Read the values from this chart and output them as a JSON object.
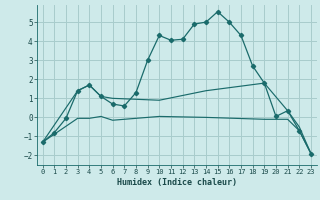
{
  "xlabel": "Humidex (Indice chaleur)",
  "bg_color": "#ceeaea",
  "grid_color": "#a8cccc",
  "line_color": "#1a6b6b",
  "xlim": [
    -0.5,
    23.5
  ],
  "ylim": [
    -2.5,
    5.9
  ],
  "yticks": [
    -2,
    -1,
    0,
    1,
    2,
    3,
    4,
    5
  ],
  "xticks": [
    0,
    1,
    2,
    3,
    4,
    5,
    6,
    7,
    8,
    9,
    10,
    11,
    12,
    13,
    14,
    15,
    16,
    17,
    18,
    19,
    20,
    21,
    22,
    23
  ],
  "line1_x": [
    0,
    1,
    2,
    3,
    4,
    5,
    6,
    7,
    8,
    9,
    10,
    11,
    12,
    13,
    14,
    15,
    16,
    17,
    18,
    19,
    20,
    21,
    22,
    23
  ],
  "line1_y": [
    -1.3,
    -0.8,
    -0.05,
    1.4,
    1.7,
    1.1,
    0.7,
    0.6,
    1.3,
    3.0,
    4.3,
    4.05,
    4.1,
    4.9,
    5.0,
    5.55,
    5.0,
    4.3,
    2.7,
    1.8,
    0.05,
    0.35,
    -0.7,
    -1.9
  ],
  "line2_x": [
    0,
    3,
    4,
    5,
    6,
    10,
    14,
    19,
    21,
    22,
    23
  ],
  "line2_y": [
    -1.3,
    1.4,
    1.7,
    1.1,
    1.0,
    0.9,
    1.4,
    1.8,
    0.35,
    -0.5,
    -1.9
  ],
  "line3_x": [
    0,
    3,
    4,
    5,
    6,
    10,
    14,
    19,
    21,
    22,
    23
  ],
  "line3_y": [
    -1.3,
    -0.05,
    -0.05,
    0.05,
    -0.15,
    0.05,
    0.0,
    -0.1,
    -0.1,
    -0.7,
    -1.9
  ]
}
